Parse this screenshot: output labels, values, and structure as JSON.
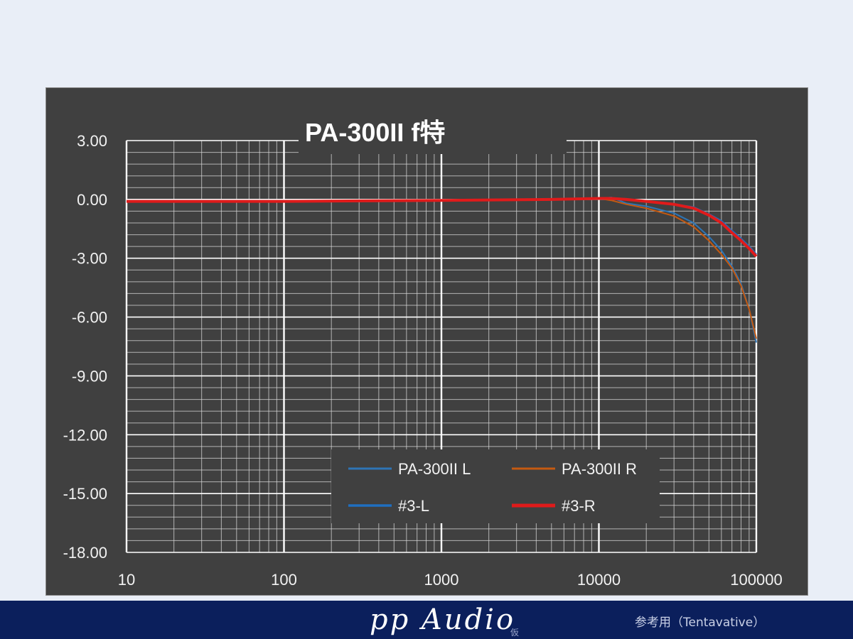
{
  "chart_data": {
    "type": "line",
    "title": "PA-300II f特",
    "xlabel": "",
    "ylabel": "",
    "x_scale": "log",
    "xlim": [
      10,
      100000
    ],
    "ylim": [
      -18,
      3
    ],
    "x_ticks": [
      "10",
      "100",
      "1000",
      "10000",
      "100000"
    ],
    "y_ticks": [
      "3.00",
      "0.00",
      "-3.00",
      "-6.00",
      "-9.00",
      "-12.00",
      "-15.00",
      "-18.00"
    ],
    "grid": true,
    "legend_position": "bottom-center",
    "series": [
      {
        "name": "PA-300II L",
        "color": "#2e75b6",
        "x": [
          10,
          100,
          1000,
          5000,
          10000,
          12000,
          15000,
          20000,
          30000,
          40000,
          50000,
          60000,
          70000,
          80000,
          90000,
          100000
        ],
        "y": [
          -0.1,
          -0.1,
          -0.05,
          0.0,
          0.05,
          0.1,
          -0.2,
          -0.35,
          -0.7,
          -1.2,
          -1.9,
          -2.6,
          -3.4,
          -4.3,
          -5.6,
          -7.3
        ]
      },
      {
        "name": "PA-300II R",
        "color": "#c55a11",
        "x": [
          10,
          100,
          1000,
          5000,
          10000,
          12000,
          15000,
          20000,
          30000,
          40000,
          50000,
          60000,
          70000,
          80000,
          90000,
          100000
        ],
        "y": [
          -0.1,
          -0.1,
          -0.05,
          0.0,
          0.05,
          -0.05,
          -0.25,
          -0.45,
          -0.85,
          -1.4,
          -2.1,
          -2.8,
          -3.5,
          -4.4,
          -5.6,
          -7.1
        ]
      },
      {
        "name": "#3-L",
        "color": "#1f6fc0",
        "x": [
          10,
          100,
          1000,
          5000,
          10000,
          12000,
          15000,
          20000,
          30000,
          40000,
          50000,
          60000,
          70000,
          80000,
          90000,
          100000
        ],
        "y": [
          -0.1,
          -0.1,
          -0.05,
          0.0,
          0.05,
          0.05,
          0.0,
          -0.1,
          -0.25,
          -0.4,
          -0.75,
          -1.1,
          -1.6,
          -2.0,
          -2.4,
          -2.8
        ]
      },
      {
        "name": "#3-R",
        "color": "#e01b1b",
        "x": [
          10,
          100,
          1000,
          5000,
          10000,
          12000,
          15000,
          20000,
          30000,
          40000,
          50000,
          60000,
          70000,
          80000,
          90000,
          100000
        ],
        "y": [
          -0.1,
          -0.1,
          -0.05,
          0.0,
          0.05,
          0.05,
          0.0,
          -0.1,
          -0.25,
          -0.45,
          -0.8,
          -1.2,
          -1.7,
          -2.1,
          -2.5,
          -2.9
        ]
      }
    ]
  },
  "footer": {
    "brand": "pp Audio",
    "brand_sub": "仮",
    "note": "参考用（Tentavative）"
  }
}
